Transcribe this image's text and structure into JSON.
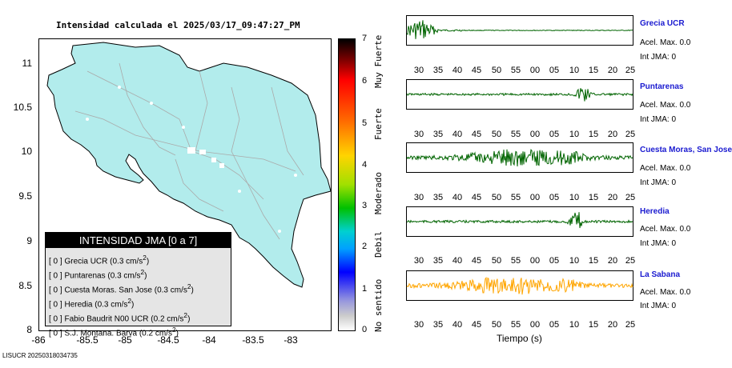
{
  "title": "Intensidad calculada el 2025/03/17_09:47:27_PM",
  "map": {
    "y_ticks": [
      "11",
      "10.5",
      "10",
      "9.5",
      "9",
      "8.5",
      "8"
    ],
    "x_ticks": [
      "-86",
      "-85.5",
      "-85",
      "-84.5",
      "-84",
      "-83.5",
      "-83"
    ],
    "land_color": "#b2ecec"
  },
  "legend": {
    "header": "INTENSIDAD JMA [0 a 7]",
    "rows": [
      {
        "level": "[ 0 ]",
        "station": "Grecia UCR (0.3 cm/s",
        "sup": "2",
        "close": ")"
      },
      {
        "level": "[ 0 ]",
        "station": "Puntarenas (0.3 cm/s",
        "sup": "2",
        "close": ")"
      },
      {
        "level": "[ 0 ]",
        "station": "Cuesta Moras. San Jose (0.3 cm/s",
        "sup": "2",
        "close": ")"
      },
      {
        "level": "[ 0 ]",
        "station": "Heredia (0.3 cm/s",
        "sup": "2",
        "close": ")"
      },
      {
        "level": "[ 0 ]",
        "station": "Fabio Baudrit N00 UCR (0.2 cm/s",
        "sup": "2",
        "close": ")"
      },
      {
        "level": "[ 0 ]",
        "station": "S.J. Montana. Barva (0.2 cm/s",
        "sup": "2",
        "close": ")"
      }
    ]
  },
  "colorbar": {
    "numbers": [
      "7",
      "6",
      "5",
      "4",
      "3",
      "2",
      "1",
      "0"
    ],
    "words": [
      "Muy Fuerte",
      "Fuerte",
      "Moderado",
      "Debil",
      "No sentido"
    ]
  },
  "waveform_ticks": [
    "30",
    "35",
    "40",
    "45",
    "50",
    "55",
    "00",
    "05",
    "10",
    "15",
    "20",
    "25"
  ],
  "stations": [
    {
      "name": "Grecia UCR",
      "acel": "Acel. Max. 0.0",
      "int": "Int JMA: 0",
      "color": "#006400"
    },
    {
      "name": "Puntarenas",
      "acel": "Acel. Max. 0.0",
      "int": "Int JMA: 0",
      "color": "#006400"
    },
    {
      "name": "Cuesta Moras, San Jose",
      "acel": "Acel. Max. 0.0",
      "int": "Int JMA: 0",
      "color": "#006400"
    },
    {
      "name": "Heredia",
      "acel": "Acel. Max. 0.0",
      "int": "Int JMA: 0",
      "color": "#006400"
    },
    {
      "name": "La Sabana",
      "acel": "Acel. Max. 0.0",
      "int": "Int JMA: 0",
      "color": "#ffa500"
    }
  ],
  "xlabel": "Tiempo (s)",
  "footer": "LISUCR 20250318034735"
}
